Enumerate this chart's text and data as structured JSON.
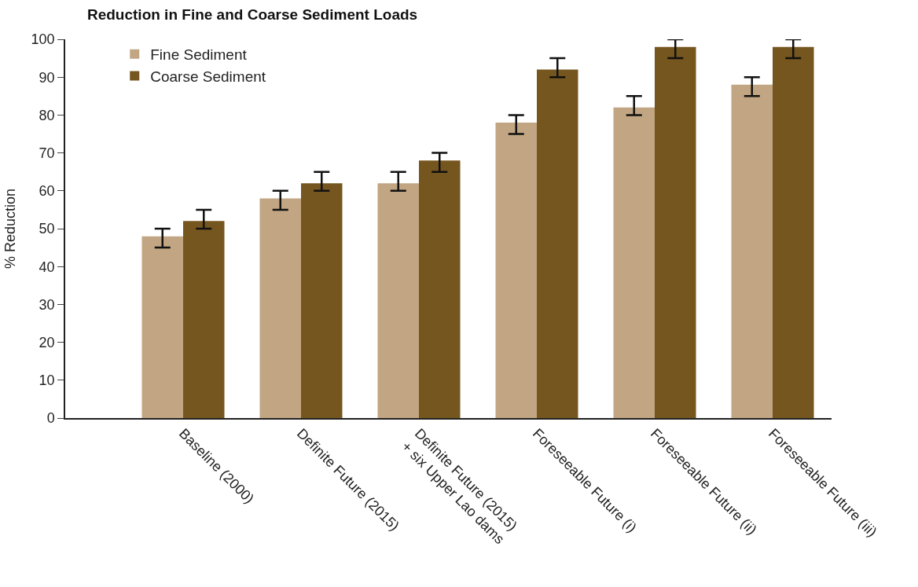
{
  "chart_data": {
    "type": "bar",
    "title": "Reduction in Fine and Coarse Sediment Loads",
    "ylabel": "% Reduction",
    "categories": [
      "Baseline (2000)",
      "Definite Future (2015)",
      "Definite Future (2015)\n+ six Upper Lao dams",
      "Foreseeable Future (i)",
      "Foreseeable Future (ii)",
      "Foreseeable Future (iii)"
    ],
    "series": [
      {
        "name": "Fine Sediment",
        "color": "#c2a683",
        "values": [
          48,
          58,
          62,
          78,
          82,
          88
        ],
        "errors": [
          [
            45,
            50
          ],
          [
            55,
            60
          ],
          [
            60,
            65
          ],
          [
            75,
            80
          ],
          [
            80,
            85
          ],
          [
            85,
            90
          ]
        ]
      },
      {
        "name": "Coarse Sediment",
        "color": "#76561f",
        "values": [
          52,
          62,
          68,
          92,
          98,
          98
        ],
        "errors": [
          [
            50,
            55
          ],
          [
            60,
            65
          ],
          [
            65,
            70
          ],
          [
            90,
            95
          ],
          [
            95,
            100
          ],
          [
            95,
            100
          ]
        ]
      }
    ],
    "ylim": [
      0,
      100
    ],
    "yticks": [
      0,
      10,
      20,
      30,
      40,
      50,
      60,
      70,
      80,
      90,
      100
    ],
    "legend": "top left"
  }
}
